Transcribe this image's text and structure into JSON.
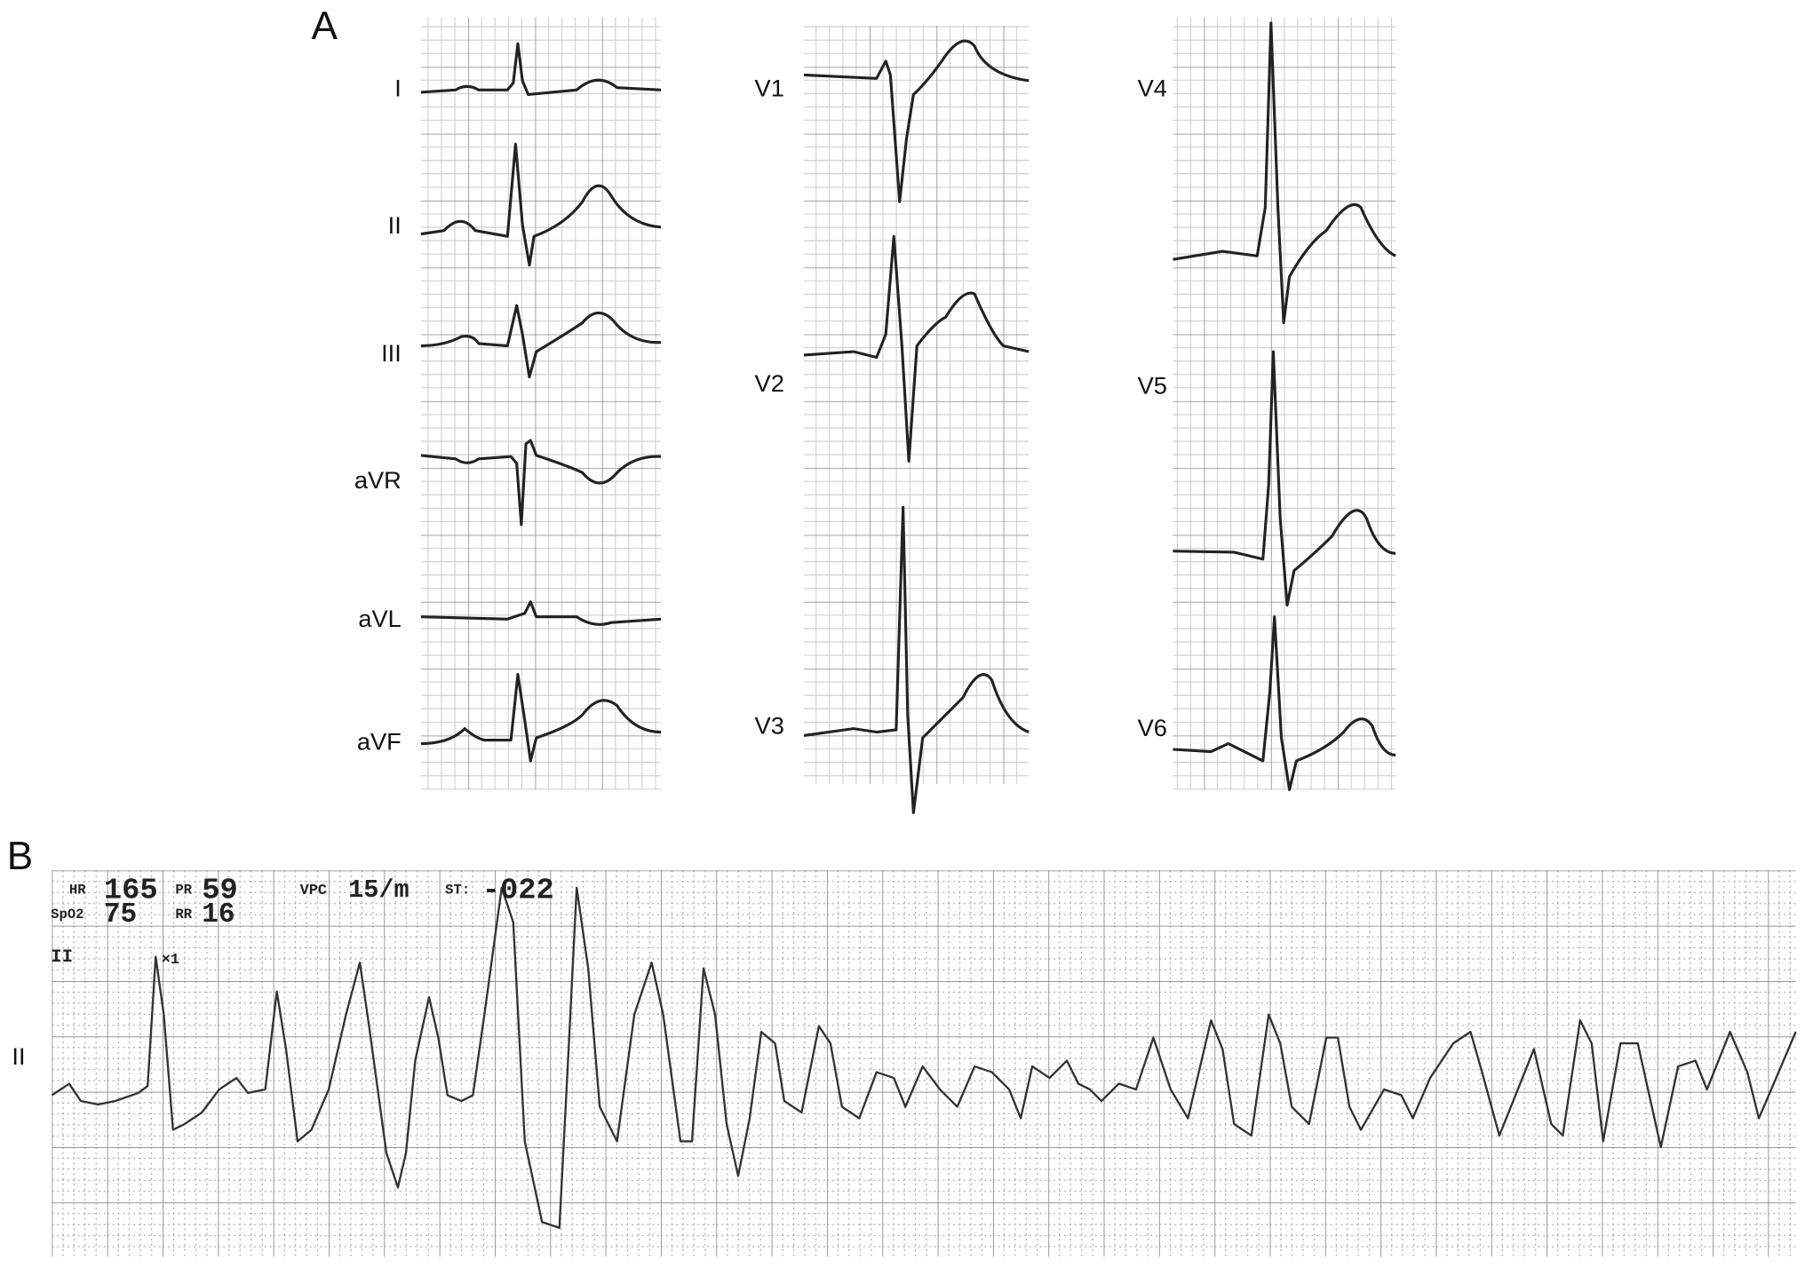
{
  "panel_a": {
    "label": "A",
    "leads": [
      "I",
      "II",
      "III",
      "aVR",
      "aVL",
      "aVF",
      "V1",
      "V2",
      "V3",
      "V4",
      "V5",
      "V6"
    ]
  },
  "panel_b": {
    "label": "B",
    "lead": "II",
    "monitor": {
      "strip_lead": "II",
      "gain": "×1",
      "hr_label": "HR",
      "hr": 165,
      "pr_label": "PR",
      "pr": 59,
      "vpc_label": "VPC",
      "vpc": "15/m",
      "st_label": "ST:",
      "st": "-022",
      "spo2_label": "SpO2",
      "spo2": 75,
      "rr_label": "RR",
      "rr": 16
    }
  }
}
